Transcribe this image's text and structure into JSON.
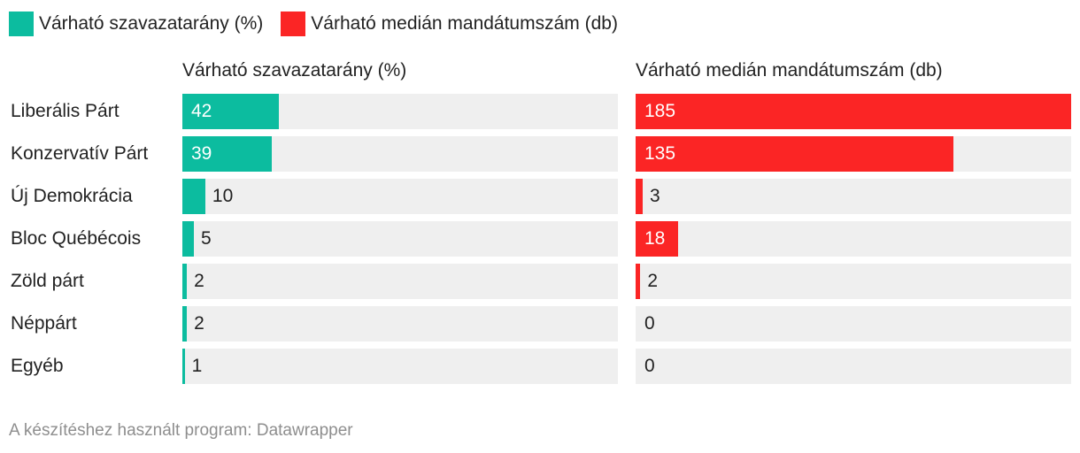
{
  "legend": [
    {
      "label": "Várható szavazatarány (%)",
      "color": "#0cbc9f"
    },
    {
      "label": "Várható medián mandátumszám (db)",
      "color": "#fb2525"
    }
  ],
  "footer": "A készítéshez használt program: Datawrapper",
  "chart_data": {
    "type": "bar",
    "orientation": "horizontal",
    "categories": [
      "Liberális Párt",
      "Konzervatív Párt",
      "Új Demokrácia",
      "Bloc Québécois",
      "Zöld párt",
      "Néppárt",
      "Egyéb"
    ],
    "series": [
      {
        "name": "Várható szavazatarány (%)",
        "color": "#0cbc9f",
        "values": [
          42,
          39,
          10,
          5,
          2,
          2,
          1
        ],
        "xlim": [
          0,
          190
        ]
      },
      {
        "name": "Várható medián mandátumszám (db)",
        "color": "#fb2525",
        "values": [
          185,
          135,
          3,
          18,
          2,
          0,
          0
        ],
        "xlim": [
          0,
          185
        ]
      }
    ]
  }
}
